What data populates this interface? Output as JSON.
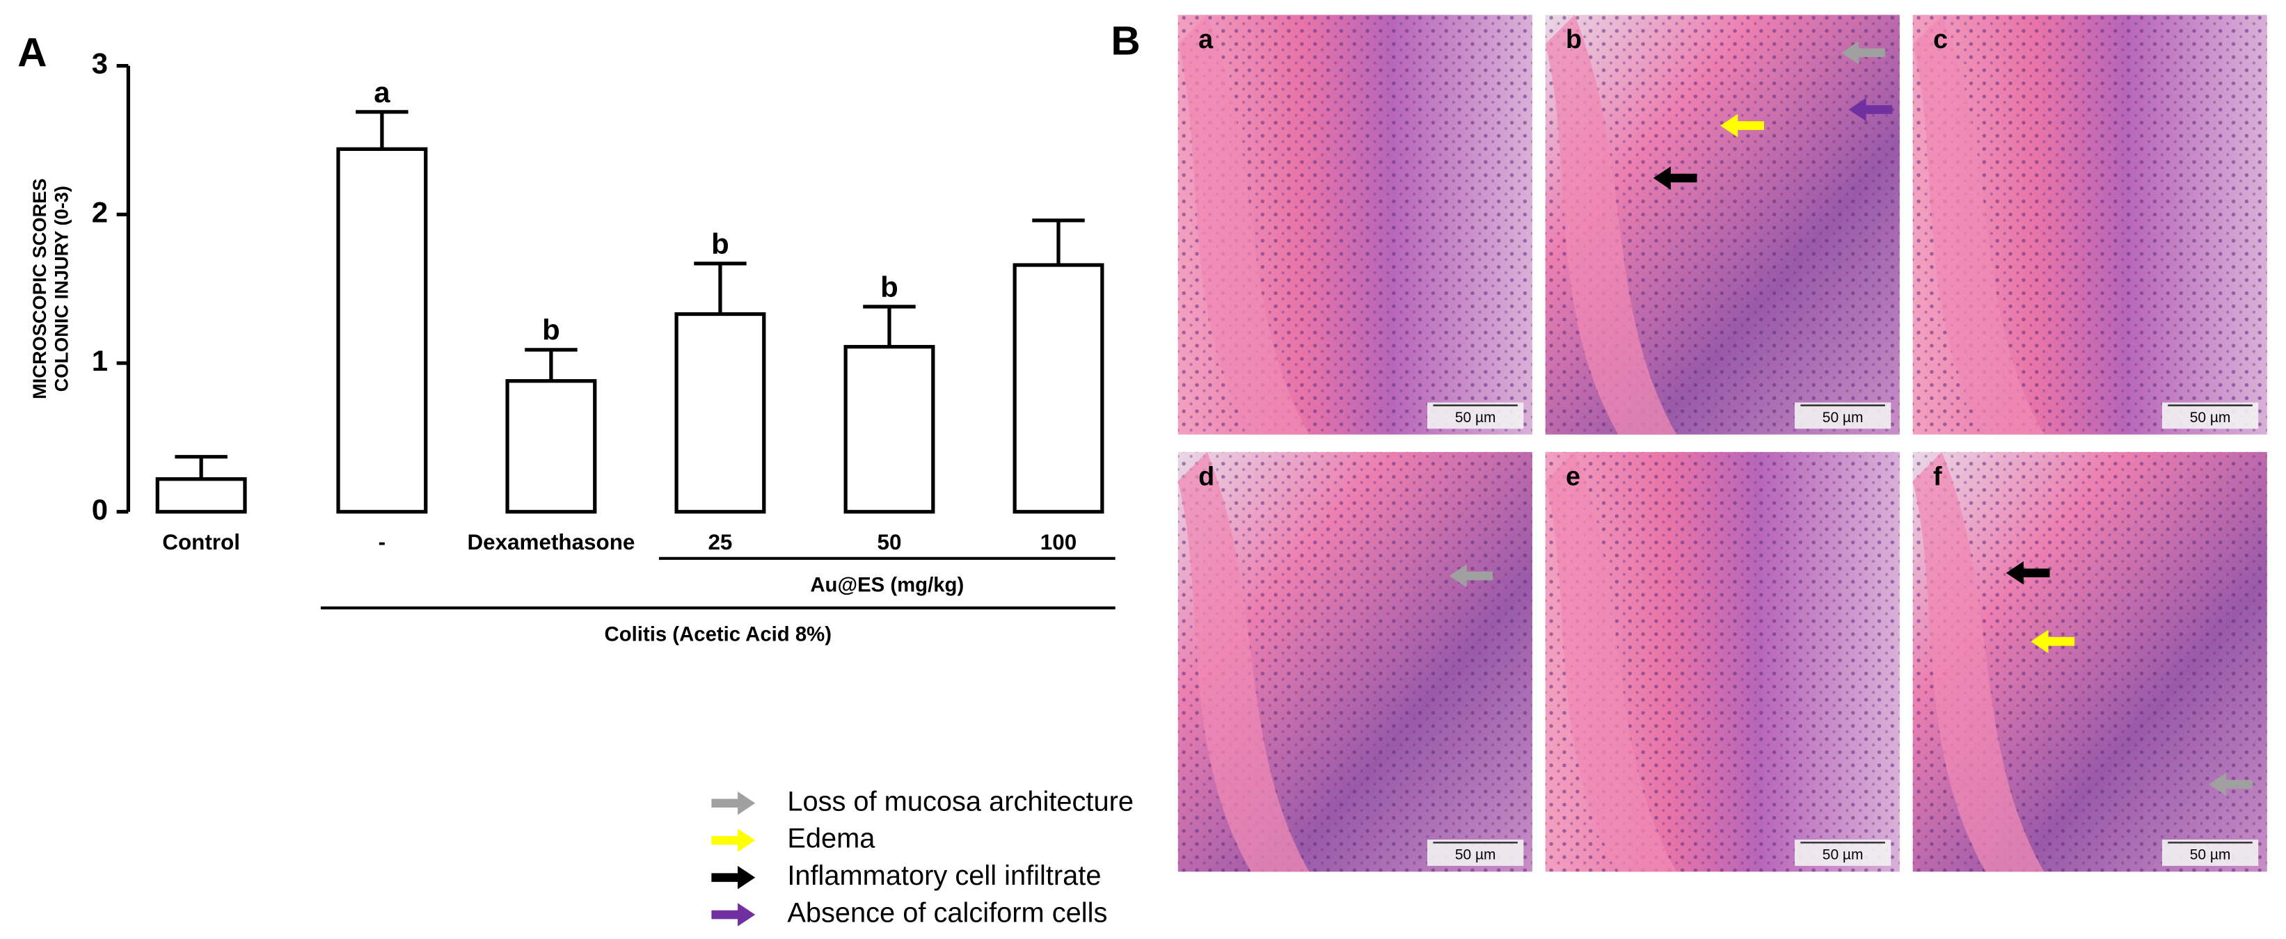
{
  "chart_data": {
    "type": "bar",
    "panel_label": "A",
    "ylabel": [
      "MICROSCOPIC SCORES",
      "COLONIC INJURY (0-3)"
    ],
    "categories": [
      "Control",
      "-",
      "Dexamethasone",
      "25",
      "50",
      "100"
    ],
    "values": [
      0.22,
      2.44,
      0.88,
      1.33,
      1.11,
      1.66
    ],
    "errors": [
      0.15,
      0.25,
      0.21,
      0.34,
      0.27,
      0.3
    ],
    "significance": [
      null,
      "a",
      "b",
      "b",
      "b",
      null
    ],
    "color": "#ffffff",
    "edge_color": "#000000",
    "ylim": [
      0,
      3
    ],
    "yticks": [
      0,
      1,
      2,
      3
    ],
    "groups": [
      {
        "label": "Au@ES (mg/kg)",
        "from": "25",
        "to": "100"
      },
      {
        "label": "Colitis  (Acetic Acid 8%)",
        "from": "-",
        "to": "100"
      }
    ]
  },
  "micrographs": {
    "panel_label": "B",
    "panels": [
      {
        "label": "a",
        "scale": "50 µm"
      },
      {
        "label": "b",
        "scale": "50 µm"
      },
      {
        "label": "c",
        "scale": "50 µm"
      },
      {
        "label": "d",
        "scale": "50 µm"
      },
      {
        "label": "e",
        "scale": "50 µm"
      },
      {
        "label": "f",
        "scale": "50 µm"
      }
    ]
  },
  "legend": [
    {
      "label": "Loss of mucosa architecture",
      "color": "#a0a0a0"
    },
    {
      "label": "Edema",
      "color": "#ffff00"
    },
    {
      "label": "Inflammatory cell infiltrate",
      "color": "#000000"
    },
    {
      "label": "Absence of calciform cells",
      "color": "#7030a0"
    }
  ]
}
